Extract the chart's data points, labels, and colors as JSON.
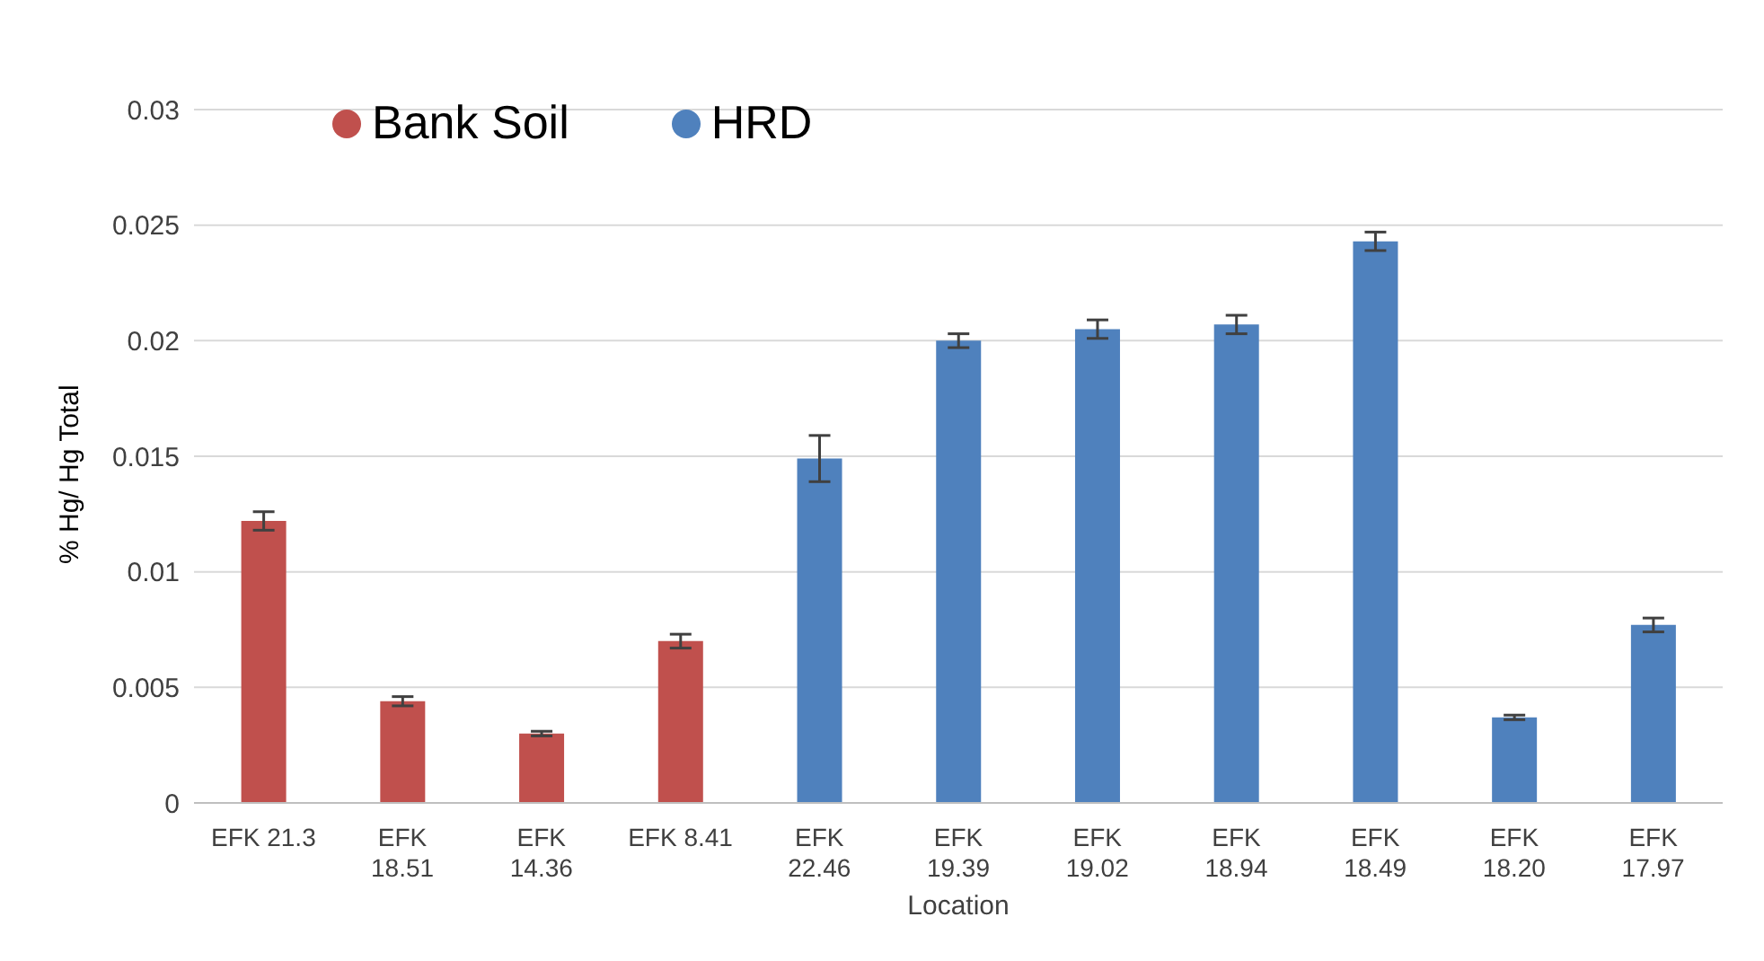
{
  "chart_data": {
    "type": "bar",
    "xlabel": "Location",
    "ylabel": "% Hg/ Hg Total",
    "categories": [
      "EFK 21.3",
      "EFK 18.51",
      "EFK 14.36",
      "EFK 8.41",
      "EFK 22.46",
      "EFK 19.39",
      "EFK 19.02",
      "EFK 18.94",
      "EFK 18.49",
      "EFK 18.20",
      "EFK 17.97"
    ],
    "series": [
      {
        "name": "Bank Soil",
        "color": "#c0504d",
        "values": [
          0.0122,
          0.0044,
          0.003,
          0.007,
          null,
          null,
          null,
          null,
          null,
          null,
          null
        ],
        "errors": [
          0.0004,
          0.0002,
          0.0001,
          0.0003,
          null,
          null,
          null,
          null,
          null,
          null,
          null
        ]
      },
      {
        "name": "HRD",
        "color": "#4f81bd",
        "values": [
          null,
          null,
          null,
          null,
          0.0149,
          0.02,
          0.0205,
          0.0207,
          0.0243,
          0.0037,
          0.0077
        ],
        "errors": [
          null,
          null,
          null,
          null,
          0.001,
          0.0003,
          0.0004,
          0.0004,
          0.0004,
          0.0001,
          0.0003
        ]
      }
    ],
    "ylim": [
      0,
      0.03
    ],
    "yticks": [
      0,
      0.005,
      0.01,
      0.015,
      0.02,
      0.025,
      0.03
    ],
    "grid": "y",
    "legend": "top left"
  }
}
